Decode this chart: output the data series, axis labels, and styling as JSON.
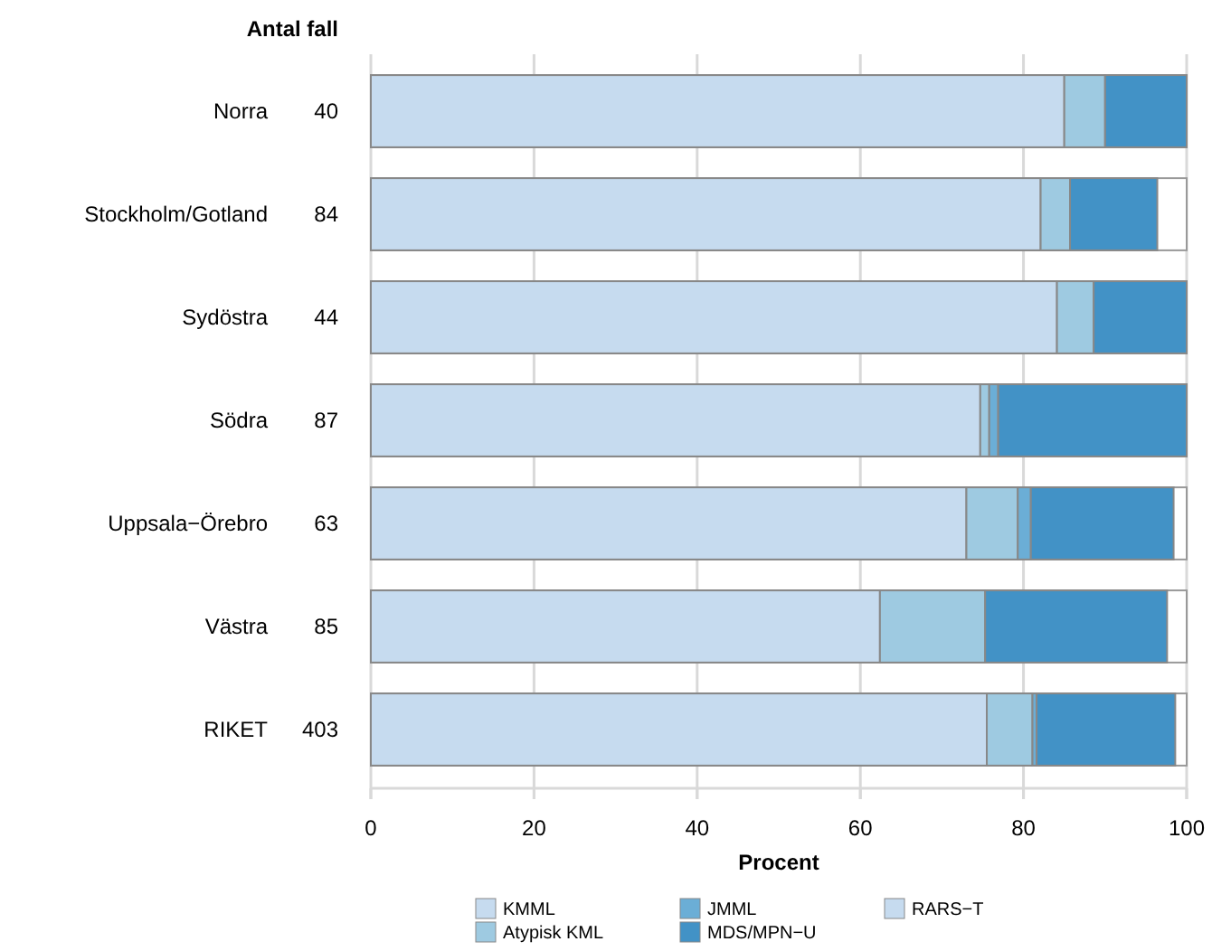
{
  "chart_data": {
    "type": "bar",
    "orientation": "horizontal",
    "stacked": true,
    "xlabel": "Procent",
    "categories": [
      "Norra",
      "Stockholm/Gotland",
      "Sydöstra",
      "Södra",
      "Uppsala−Örebro",
      "Västra",
      "RIKET"
    ],
    "series": [
      {
        "name": "KMML",
        "color": "#c6dbef",
        "values": [
          85,
          82.1,
          84.1,
          74.7,
          73,
          62.4,
          75.5
        ]
      },
      {
        "name": "Atypisk KML",
        "color": "#9ecae1",
        "values": [
          5,
          3.6,
          4.5,
          1.1,
          6.3,
          12.9,
          5.6
        ]
      },
      {
        "name": "JMML",
        "color": "#6baed6",
        "values": [
          0,
          0,
          0,
          1.1,
          1.6,
          0,
          0.5
        ]
      },
      {
        "name": "MDS/MPN−U",
        "color": "#4292c6",
        "values": [
          10,
          10.7,
          11.4,
          23.1,
          17.5,
          22.3,
          17
        ]
      },
      {
        "name": "RARS−T",
        "color": "#c6dbef",
        "values": [
          0,
          0,
          0,
          0,
          0,
          0,
          0
        ]
      }
    ],
    "xlim": [
      0,
      100
    ],
    "xticks": [
      0,
      20,
      40,
      60,
      80,
      100
    ],
    "grid": "x",
    "legend": "bottom",
    "annotations": [
      "Antal fall",
      "40",
      "84",
      "44",
      "87",
      "63",
      "85",
      "403"
    ]
  }
}
